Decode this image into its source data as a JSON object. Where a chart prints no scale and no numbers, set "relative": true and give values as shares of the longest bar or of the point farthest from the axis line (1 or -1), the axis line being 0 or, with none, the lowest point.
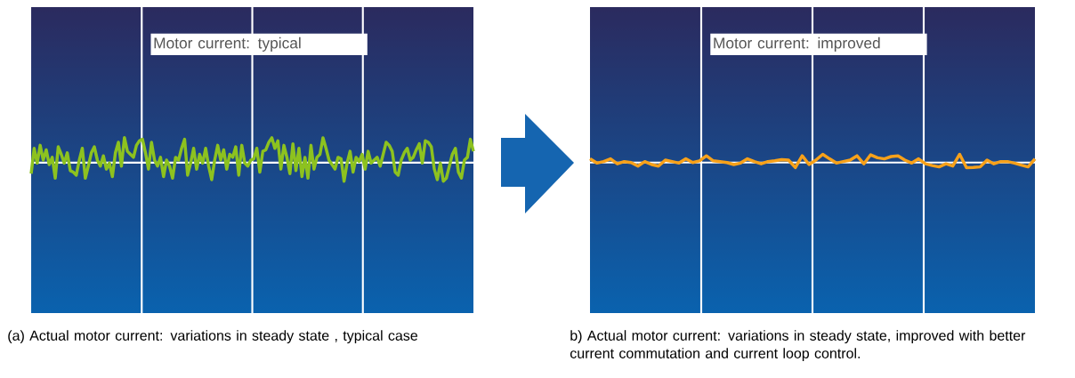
{
  "chart_data": [
    {
      "type": "line",
      "title": "Motor current: typical",
      "relative": true,
      "grid": "x",
      "annotations": [
        "(a) Actual motor current: variations in steady state , typical case"
      ],
      "categories": [
        null,
        null,
        null,
        null,
        null,
        null,
        null,
        null,
        null,
        null,
        null,
        null,
        null,
        null,
        null,
        null,
        null,
        null,
        null,
        null,
        null,
        null,
        null,
        null,
        null,
        null,
        null,
        null,
        null,
        null,
        null,
        null,
        null,
        null,
        null,
        null,
        null,
        null,
        null,
        null,
        null,
        null,
        null,
        null,
        null,
        null,
        null,
        null,
        null,
        null,
        null,
        null,
        null,
        null,
        null,
        null,
        null,
        null,
        null,
        null,
        null,
        null,
        null,
        null,
        null,
        null,
        null,
        null,
        null,
        null,
        null,
        null,
        null,
        null,
        null,
        null,
        null,
        null,
        null,
        null,
        null,
        null,
        null,
        null,
        null,
        null,
        null,
        null,
        null,
        null,
        null,
        null,
        null,
        null,
        null,
        null,
        null,
        null,
        null,
        null,
        null,
        null,
        null,
        null,
        null,
        null,
        null,
        null,
        null,
        null,
        null,
        null,
        null,
        null,
        null,
        null,
        null,
        null,
        null,
        null,
        null,
        null,
        null,
        null,
        null,
        null,
        null,
        null,
        null,
        null,
        null,
        null,
        null,
        null,
        null,
        null,
        null,
        null,
        null,
        null,
        null,
        null,
        null,
        null,
        null,
        null,
        null,
        null
      ],
      "series": [
        {
          "color": "#8dc21f",
          "values": [
            -0.44,
            0.57,
            -0.02,
            0.69,
            0.1,
            0.51,
            -0.08,
            0.21,
            -0.62,
            0.63,
            0.33,
            -0.02,
            0.39,
            -0.32,
            -0.38,
            -0.5,
            0.1,
            0.57,
            -0.62,
            -0.14,
            0.39,
            0.63,
            0.1,
            -0.14,
            0.27,
            -0.26,
            -0.02,
            -0.56,
            0.39,
            0.81,
            -0.14,
            1,
            0.45,
            0.33,
            0.21,
            0.69,
            0.87,
            0.93,
            0.39,
            -0.26,
            0.81,
            0.1,
            -0.14,
            0.21,
            -0.56,
            0.1,
            -0.14,
            -0.62,
            0.21,
            0.1,
            0.57,
            0.93,
            -0.5,
            -0.02,
            0.57,
            -0.26,
            0.33,
            -0.02,
            0.57,
            -0.14,
            -0.68,
            0.1,
            0.69,
            0.1,
            0.51,
            -0.26,
            0.33,
            0.21,
            0.63,
            -0.5,
            0.69,
            -0.02,
            -0.14,
            0.1,
            0.15,
            0.57,
            -0.38,
            0.45,
            0.51,
            0.81,
            0.99,
            0.57,
            0.87,
            -0.26,
            0.69,
            0.21,
            -0.44,
            0.75,
            -0.32,
            0.57,
            -0.56,
            0.21,
            -0.62,
            0.69,
            -0.26,
            0.21,
            0.33,
            0.99,
            0.57,
            0.1,
            -0.08,
            -0.26,
            0.21,
            0.15,
            -0.74,
            -0.02,
            0.45,
            -0.38,
            0.21,
            0.04,
            0.33,
            -0.26,
            0.45,
            -0.02,
            0.1,
            0.21,
            -0.14,
            0.33,
            0.81,
            0.69,
            0.45,
            -0.38,
            -0.5,
            0.1,
            0.39,
            0.57,
            0.1,
            0.21,
            0.51,
            0.75,
            -0.02,
            0.87,
            0.81,
            0.63,
            -0.26,
            -0.68,
            -0.02,
            -0.74,
            -0.62,
            -0.14,
            0.33,
            0.57,
            -0.38,
            -0.62,
            0.1,
            0.21,
            0.93,
            0.45
          ]
        }
      ]
    },
    {
      "type": "line",
      "title": "Motor current: improved",
      "relative": true,
      "grid": "x",
      "annotations": [
        "b) Actual motor current: variations in steady state, improved with better current commutation and current loop control."
      ],
      "categories": [
        null,
        null,
        null,
        null,
        null,
        null,
        null,
        null,
        null,
        null,
        null,
        null,
        null,
        null,
        null,
        null,
        null,
        null,
        null,
        null,
        null,
        null,
        null,
        null,
        null,
        null,
        null,
        null,
        null,
        null,
        null,
        null,
        null,
        null,
        null,
        null,
        null,
        null,
        null,
        null,
        null,
        null,
        null,
        null,
        null,
        null,
        null,
        null,
        null,
        null,
        null,
        null,
        null,
        null,
        null,
        null,
        null,
        null,
        null,
        null,
        null,
        null,
        null,
        null,
        null,
        null
      ],
      "series": [
        {
          "color": "#f7a11a",
          "values": [
            0.45,
            -0.06,
            0.12,
            0.45,
            -0.15,
            0.12,
            0,
            -0.42,
            0.12,
            -0.24,
            -0.42,
            0.3,
            0.12,
            -0.06,
            0.45,
            0,
            0.21,
            0.82,
            0.21,
            0.12,
            0,
            -0.24,
            -0.06,
            0.45,
            0.12,
            -0.15,
            0.12,
            0.21,
            0.36,
            0.3,
            -0.61,
            0.82,
            -0.24,
            0.3,
            1,
            0.45,
            -0.06,
            0.12,
            0.3,
            0.82,
            -0.15,
            0.94,
            0.58,
            0.45,
            0.73,
            0.82,
            0.3,
            -0.06,
            0.45,
            -0.15,
            -0.36,
            -0.52,
            -0.15,
            -0.42,
            1,
            -0.61,
            -0.58,
            -0.52,
            0.3,
            -0.15,
            0.12,
            0.12,
            -0.06,
            -0.3,
            -0.52,
            0.45
          ]
        }
      ]
    }
  ]
}
